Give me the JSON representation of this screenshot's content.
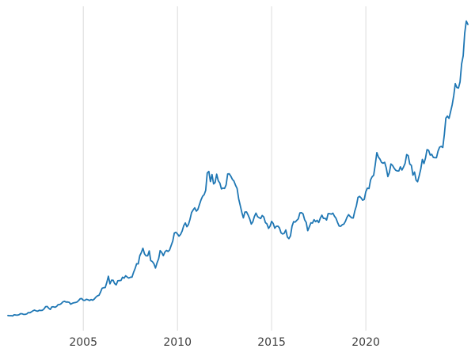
{
  "figure": {
    "background_color": "#ffffff",
    "line_color": "#1f77b4",
    "grid_color": "#dcdcdc",
    "tick_label_color": "#3d3d3d"
  },
  "chart_data": {
    "type": "line",
    "title": "",
    "xlabel": "",
    "ylabel": "",
    "legend": "none",
    "grid": "vertical-only",
    "x_axis": {
      "unit": "year",
      "tick_labels": [
        "2005",
        "2010",
        "2015",
        "2020"
      ],
      "tick_years": [
        2005,
        2010,
        2015,
        2020
      ]
    },
    "x_start_year": 2001.0,
    "x_step_months": 1,
    "series_name": "price",
    "values": [
      265,
      262,
      263,
      260,
      272,
      270,
      268,
      272,
      284,
      283,
      276,
      276,
      281,
      295,
      294,
      303,
      314,
      321,
      313,
      310,
      319,
      317,
      319,
      333,
      357,
      359,
      340,
      328,
      355,
      356,
      351,
      360,
      379,
      379,
      390,
      407,
      414,
      405,
      406,
      403,
      383,
      392,
      398,
      400,
      405,
      420,
      439,
      442,
      424,
      423,
      434,
      429,
      422,
      431,
      424,
      437,
      456,
      470,
      476,
      510,
      550,
      555,
      557,
      611,
      675,
      596,
      634,
      633,
      599,
      586,
      628,
      630,
      631,
      665,
      655,
      680,
      667,
      656,
      665,
      665,
      713,
      755,
      806,
      804,
      890,
      923,
      968,
      910,
      889,
      889,
      940,
      839,
      829,
      807,
      761,
      816,
      858,
      943,
      924,
      890,
      929,
      946,
      934,
      950,
      997,
      1043,
      1127,
      1135,
      1118,
      1095,
      1113,
      1149,
      1205,
      1233,
      1193,
      1216,
      1271,
      1342,
      1370,
      1391,
      1356,
      1373,
      1424,
      1474,
      1512,
      1529,
      1573,
      1756,
      1772,
      1666,
      1739,
      1641,
      1656,
      1743,
      1674,
      1650,
      1589,
      1598,
      1594,
      1630,
      1745,
      1747,
      1721,
      1688,
      1671,
      1628,
      1593,
      1485,
      1414,
      1342,
      1286,
      1347,
      1348,
      1316,
      1276,
      1221,
      1244,
      1300,
      1336,
      1299,
      1288,
      1279,
      1311,
      1295,
      1237,
      1222,
      1176,
      1201,
      1250,
      1227,
      1178,
      1198,
      1199,
      1181,
      1130,
      1117,
      1125,
      1159,
      1086,
      1068,
      1097,
      1200,
      1246,
      1242,
      1260,
      1276,
      1337,
      1340,
      1327,
      1266,
      1238,
      1152,
      1192,
      1234,
      1231,
      1267,
      1246,
      1260,
      1237,
      1283,
      1314,
      1280,
      1282,
      1264,
      1331,
      1330,
      1325,
      1335,
      1303,
      1282,
      1238,
      1201,
      1198,
      1215,
      1221,
      1250,
      1292,
      1320,
      1301,
      1286,
      1284,
      1359,
      1413,
      1500,
      1511,
      1495,
      1471,
      1479,
      1561,
      1597,
      1592,
      1683,
      1716,
      1732,
      1843,
      1969,
      1922,
      1900,
      1866,
      1858,
      1867,
      1808,
      1718,
      1762,
      1850,
      1835,
      1807,
      1784,
      1777,
      1777,
      1820,
      1787,
      1817,
      1856,
      1948,
      1937,
      1850,
      1836,
      1733,
      1765,
      1681,
      1664,
      1726,
      1797,
      1898,
      1855,
      1913,
      2000,
      1992,
      1943,
      1951,
      1918,
      1916,
      1915,
      1984,
      2026,
      2034,
      2023,
      2160,
      2330,
      2351,
      2327,
      2398,
      2470,
      2568,
      2690,
      2650,
      2644,
      2708,
      2897,
      2983,
      3218,
      3345,
      3310
    ]
  }
}
